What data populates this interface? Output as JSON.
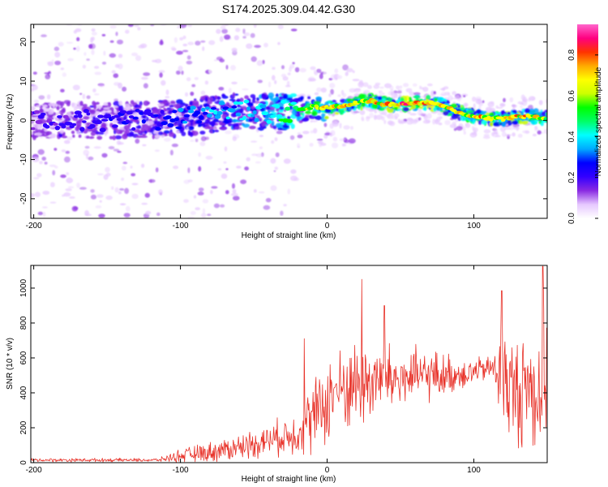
{
  "title": "S174.2025.309.04.42.G30",
  "chart_data": [
    {
      "type": "heatmap",
      "name": "spectrogram",
      "xlabel": "Height of straight line (km)",
      "ylabel": "Frequency (Hz)",
      "xlim": [
        -202,
        150
      ],
      "ylim": [
        -25,
        24.5
      ],
      "xticks": [
        -200,
        -100,
        0,
        100
      ],
      "yticks": [
        -20,
        -10,
        0,
        10,
        20
      ],
      "colorbar": {
        "label": "Normalized spectral amplitude",
        "range": [
          0.0,
          0.95
        ],
        "ticks": [
          0.0,
          0.2,
          0.4,
          0.6,
          0.8
        ],
        "tick_labels": [
          "0.0",
          "0.2",
          "0.4",
          "0.6",
          "0.8"
        ],
        "colors": [
          "#ffffff",
          "#e6c8ff",
          "#8a2be2",
          "#3300ff",
          "#0000ff",
          "#00aaff",
          "#00ffff",
          "#00ff66",
          "#00ff00",
          "#ccff00",
          "#ffff00",
          "#ffaa00",
          "#ff3300",
          "#ff0080",
          "#ff66cc"
        ]
      },
      "ridge": {
        "x": [
          -202,
          -150,
          -100,
          -60,
          -40,
          -20,
          -10,
          0,
          10,
          20,
          30,
          40,
          50,
          60,
          70,
          80,
          90,
          100,
          110,
          120,
          130,
          140,
          150
        ],
        "freq_hz": [
          0,
          0,
          0.5,
          2.5,
          2,
          2.5,
          3.5,
          3.2,
          3.5,
          4.5,
          5,
          4,
          4,
          4.5,
          4.5,
          3.5,
          2,
          1,
          0.5,
          0.5,
          1,
          1,
          0.5
        ],
        "amplitude": [
          0.2,
          0.22,
          0.3,
          0.4,
          0.45,
          0.55,
          0.65,
          0.7,
          0.72,
          0.74,
          0.72,
          0.75,
          0.8,
          0.82,
          0.8,
          0.75,
          0.72,
          0.72,
          0.72,
          0.72,
          0.75,
          0.72,
          0.6
        ]
      }
    },
    {
      "type": "line",
      "name": "snr",
      "xlabel": "Height of straight line (km)",
      "ylabel": "SNR (10 * v/v)",
      "xlim": [
        -202,
        150
      ],
      "ylim": [
        0,
        1130
      ],
      "xticks": [
        -200,
        -100,
        0,
        100
      ],
      "yticks": [
        0,
        200,
        400,
        600,
        800,
        1000
      ],
      "color": "#e8332a",
      "series": [
        {
          "name": "SNR",
          "x": [
            -202,
            -150,
            -115,
            -100,
            -80,
            -60,
            -40,
            -30,
            -20,
            -15,
            -10,
            -5,
            0,
            5,
            10,
            15,
            20,
            25,
            30,
            40,
            50,
            60,
            70,
            80,
            90,
            100,
            110,
            115,
            120,
            125,
            130,
            135,
            140,
            145,
            150
          ],
          "baseline": [
            15,
            15,
            15,
            40,
            60,
            90,
            130,
            150,
            170,
            230,
            250,
            300,
            350,
            400,
            420,
            440,
            450,
            460,
            470,
            480,
            480,
            490,
            500,
            500,
            510,
            520,
            540,
            540,
            500,
            420,
            400,
            450,
            420,
            400,
            450
          ],
          "spread": [
            12,
            12,
            12,
            45,
            70,
            90,
            110,
            130,
            150,
            220,
            250,
            280,
            300,
            300,
            280,
            300,
            320,
            320,
            300,
            250,
            220,
            200,
            180,
            150,
            120,
            100,
            80,
            200,
            450,
            350,
            400,
            400,
            450,
            450,
            550
          ],
          "peaks": [
            {
              "x": -15.5,
              "y": 710
            },
            {
              "x": 5,
              "y": 430
            },
            {
              "x": 23.5,
              "y": 1050
            },
            {
              "x": 39,
              "y": 900
            },
            {
              "x": 119,
              "y": 985
            },
            {
              "x": 147,
              "y": 1125
            }
          ]
        }
      ]
    }
  ]
}
